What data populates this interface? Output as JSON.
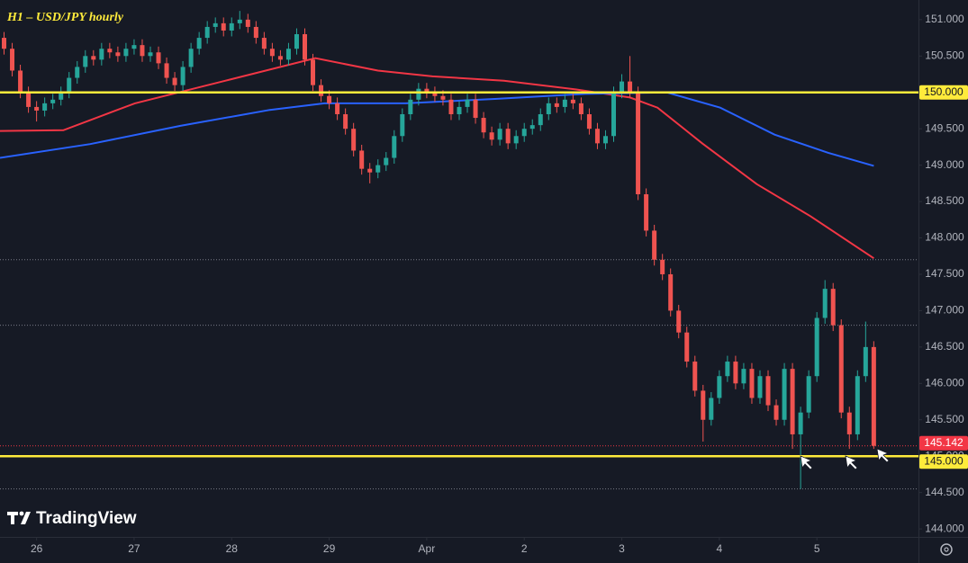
{
  "chart_data": {
    "type": "candlestick",
    "title": "H1 – USD/JPY hourly",
    "watermark": "TradingView",
    "background": "#161a25",
    "up_color": "#26a69a",
    "down_color": "#ef5350",
    "xlim": [
      -4.5,
      108.5
    ],
    "xticks": [
      {
        "value": 0,
        "label": "26"
      },
      {
        "value": 12,
        "label": "27"
      },
      {
        "value": 24,
        "label": "28"
      },
      {
        "value": 36,
        "label": "29"
      },
      {
        "value": 48,
        "label": "Apr"
      },
      {
        "value": 60,
        "label": "2"
      },
      {
        "value": 72,
        "label": "3"
      },
      {
        "value": 84,
        "label": "4"
      },
      {
        "value": 96,
        "label": "5"
      }
    ],
    "ylim": [
      143.89,
      151.27
    ],
    "yticks": [
      {
        "value": 144,
        "label": "144.000"
      },
      {
        "value": 144.5,
        "label": "144.500"
      },
      {
        "value": 145,
        "label": "145.000"
      },
      {
        "value": 145.5,
        "label": "145.500"
      },
      {
        "value": 146,
        "label": "146.000"
      },
      {
        "value": 146.5,
        "label": "146.500"
      },
      {
        "value": 147,
        "label": "147.000"
      },
      {
        "value": 147.5,
        "label": "147.500"
      },
      {
        "value": 148,
        "label": "148.000"
      },
      {
        "value": 148.5,
        "label": "148.500"
      },
      {
        "value": 149,
        "label": "149.000"
      },
      {
        "value": 149.5,
        "label": "149.500"
      },
      {
        "value": 150,
        "label": "150.000"
      },
      {
        "value": 150.5,
        "label": "150.500"
      },
      {
        "value": 151,
        "label": "151.000"
      }
    ],
    "x": [
      -4,
      -3,
      -2,
      -1,
      0,
      1,
      2,
      3,
      4,
      5,
      6,
      7,
      8,
      9,
      10,
      11,
      12,
      13,
      14,
      15,
      16,
      17,
      18,
      19,
      20,
      21,
      22,
      23,
      24,
      25,
      26,
      27,
      28,
      29,
      30,
      31,
      32,
      33,
      34,
      35,
      36,
      37,
      38,
      39,
      40,
      41,
      42,
      43,
      44,
      45,
      46,
      47,
      48,
      49,
      50,
      51,
      52,
      53,
      54,
      55,
      56,
      57,
      58,
      59,
      60,
      61,
      62,
      63,
      64,
      65,
      66,
      67,
      68,
      69,
      70,
      71,
      72,
      73,
      74,
      75,
      76,
      77,
      78,
      79,
      80,
      81,
      82,
      83,
      84,
      85,
      86,
      87,
      88,
      89,
      90,
      91,
      92,
      93,
      94,
      95,
      96,
      97,
      98,
      99,
      100,
      101,
      102,
      103
    ],
    "open": [
      150.75,
      150.6,
      150.3,
      150.0,
      149.8,
      149.75,
      149.85,
      149.9,
      150.0,
      150.2,
      150.35,
      150.5,
      150.45,
      150.6,
      150.55,
      150.5,
      150.6,
      150.65,
      150.5,
      150.55,
      150.4,
      150.2,
      150.1,
      150.35,
      150.6,
      150.75,
      150.9,
      150.95,
      150.85,
      150.95,
      151.0,
      150.9,
      150.75,
      150.6,
      150.5,
      150.45,
      150.6,
      150.8,
      150.45,
      150.1,
      149.95,
      149.85,
      149.7,
      149.5,
      149.2,
      148.95,
      148.9,
      149.0,
      149.1,
      149.4,
      149.7,
      149.9,
      150.05,
      150.0,
      149.95,
      149.9,
      149.7,
      149.8,
      149.9,
      149.65,
      149.45,
      149.35,
      149.5,
      149.3,
      149.4,
      149.5,
      149.55,
      149.7,
      149.85,
      149.8,
      149.9,
      149.85,
      149.7,
      149.5,
      149.3,
      149.4,
      150.0,
      150.15,
      150.0,
      148.6,
      148.1,
      147.7,
      147.5,
      147.0,
      146.7,
      146.3,
      145.9,
      145.5,
      145.8,
      146.1,
      146.3,
      146.0,
      146.2,
      145.8,
      146.1,
      145.7,
      145.5,
      146.2,
      145.3,
      145.6,
      146.1,
      146.9,
      147.3,
      146.8,
      145.6,
      145.3,
      146.1,
      146.5
    ],
    "high": [
      150.83,
      150.68,
      150.38,
      150.08,
      149.88,
      149.93,
      149.98,
      150.08,
      150.28,
      150.43,
      150.58,
      150.58,
      150.68,
      150.68,
      150.63,
      150.68,
      150.73,
      150.73,
      150.63,
      150.63,
      150.48,
      150.28,
      150.43,
      150.68,
      150.83,
      150.98,
      151.03,
      151.03,
      151.03,
      151.12,
      151.08,
      150.98,
      150.83,
      150.68,
      150.58,
      150.68,
      150.88,
      150.88,
      150.53,
      150.18,
      150.03,
      149.93,
      149.78,
      149.58,
      149.28,
      149.03,
      149.08,
      149.18,
      149.48,
      149.78,
      149.98,
      150.13,
      150.13,
      150.08,
      150.03,
      149.98,
      149.88,
      149.98,
      149.98,
      149.73,
      149.53,
      149.58,
      149.58,
      149.48,
      149.58,
      149.63,
      149.78,
      149.93,
      149.93,
      149.98,
      149.98,
      149.93,
      149.78,
      149.58,
      149.48,
      150.08,
      150.25,
      150.5,
      150.08,
      148.68,
      148.18,
      147.78,
      147.58,
      147.08,
      146.78,
      146.38,
      145.98,
      145.88,
      146.18,
      146.38,
      146.38,
      146.28,
      146.28,
      146.18,
      146.18,
      145.78,
      146.28,
      146.28,
      145.68,
      146.18,
      146.98,
      147.42,
      147.38,
      146.88,
      145.68,
      146.18,
      146.85,
      146.58
    ],
    "low": [
      150.52,
      150.22,
      149.92,
      149.72,
      149.6,
      149.67,
      149.77,
      149.82,
      149.92,
      150.12,
      150.27,
      150.37,
      150.37,
      150.47,
      150.42,
      150.42,
      150.52,
      150.42,
      150.42,
      150.32,
      150.12,
      150.02,
      150.02,
      150.27,
      150.52,
      150.67,
      150.82,
      150.77,
      150.77,
      150.87,
      150.82,
      150.67,
      150.52,
      150.42,
      150.37,
      150.37,
      150.52,
      150.37,
      150.02,
      149.87,
      149.77,
      149.62,
      149.42,
      149.12,
      148.87,
      148.75,
      148.82,
      148.92,
      149.02,
      149.32,
      149.62,
      149.82,
      149.92,
      149.87,
      149.82,
      149.62,
      149.62,
      149.72,
      149.57,
      149.37,
      149.27,
      149.27,
      149.22,
      149.22,
      149.32,
      149.42,
      149.47,
      149.62,
      149.72,
      149.72,
      149.77,
      149.62,
      149.42,
      149.22,
      149.22,
      149.32,
      149.92,
      149.92,
      148.52,
      148.02,
      147.62,
      147.42,
      146.92,
      146.62,
      146.22,
      145.82,
      145.2,
      145.42,
      145.72,
      146.02,
      145.92,
      145.92,
      145.72,
      145.72,
      145.62,
      145.42,
      145.42,
      145.1,
      144.55,
      145.52,
      146.02,
      146.82,
      146.72,
      145.52,
      145.1,
      145.22,
      146.02,
      145.1
    ],
    "close": [
      150.6,
      150.3,
      150.0,
      149.8,
      149.75,
      149.85,
      149.9,
      150.0,
      150.2,
      150.35,
      150.5,
      150.45,
      150.6,
      150.55,
      150.5,
      150.6,
      150.65,
      150.5,
      150.55,
      150.4,
      150.2,
      150.1,
      150.35,
      150.6,
      150.75,
      150.9,
      150.95,
      150.85,
      150.95,
      151.0,
      150.9,
      150.75,
      150.6,
      150.5,
      150.45,
      150.6,
      150.8,
      150.45,
      150.1,
      149.95,
      149.85,
      149.7,
      149.5,
      149.2,
      148.95,
      148.9,
      149.0,
      149.1,
      149.4,
      149.7,
      149.9,
      150.05,
      150.0,
      149.95,
      149.9,
      149.7,
      149.8,
      149.9,
      149.65,
      149.45,
      149.35,
      149.5,
      149.3,
      149.4,
      149.5,
      149.55,
      149.7,
      149.85,
      149.8,
      149.9,
      149.85,
      149.7,
      149.5,
      149.3,
      149.4,
      150.0,
      150.15,
      150.0,
      148.6,
      148.1,
      147.7,
      147.5,
      147.0,
      146.7,
      146.3,
      145.9,
      145.5,
      145.8,
      146.1,
      146.3,
      146.0,
      146.2,
      145.8,
      146.1,
      145.7,
      145.5,
      146.2,
      145.3,
      145.6,
      146.1,
      146.9,
      147.3,
      146.8,
      145.6,
      145.3,
      146.1,
      146.5,
      145.142
    ],
    "lines": [
      {
        "color": "#f23645",
        "x": [
          -4.5,
          3.3,
          12.1,
          23.2,
          34.3,
          42.0,
          48.7,
          57.5,
          66.4,
          73.0,
          76.4,
          81.9,
          88.6,
          95.2,
          103.0
        ],
        "values": [
          149.47,
          149.48,
          149.85,
          150.16,
          150.47,
          150.3,
          150.22,
          150.16,
          150.04,
          149.93,
          149.79,
          149.3,
          148.74,
          148.3,
          147.72
        ]
      },
      {
        "color": "#2962ff",
        "x": [
          -4.5,
          6.6,
          17.7,
          28.7,
          35.4,
          45.4,
          56.4,
          67.5,
          77.5,
          84.1,
          90.8,
          97.4,
          103.0
        ],
        "values": [
          149.1,
          149.29,
          149.54,
          149.76,
          149.85,
          149.85,
          149.91,
          149.98,
          150.0,
          149.79,
          149.42,
          149.17,
          148.99
        ]
      }
    ],
    "levels": [
      {
        "value": 150,
        "label": "150.000",
        "color": "#ffeb3b"
      },
      {
        "value": 145,
        "label": "145.000",
        "color": "#ffeb3b"
      }
    ],
    "dotted_levels": [
      147.7,
      146.8,
      144.55
    ],
    "last_price": {
      "value": 145.142,
      "label": "145.142",
      "color": "#f23645"
    }
  }
}
